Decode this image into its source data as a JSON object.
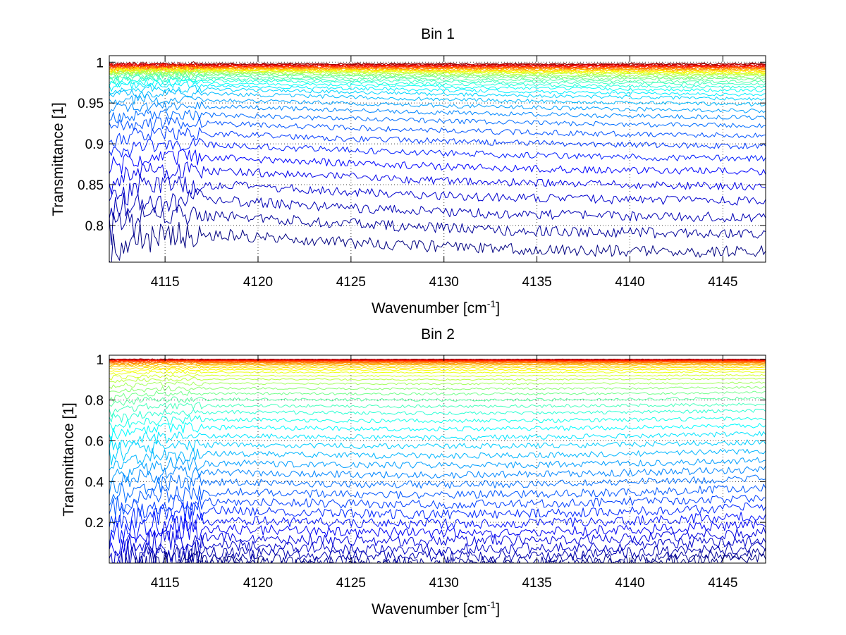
{
  "chart_data": [
    {
      "type": "line",
      "id": "bin1",
      "title": "Bin 1",
      "xlabel": "Wavenumber [cm",
      "xlabel_sup": "-1",
      "xlabel_end": "]",
      "ylabel": "Transmittance [1]",
      "xlim": [
        4112,
        4147.3
      ],
      "ylim": [
        0.755,
        1.008
      ],
      "xticks": [
        4115,
        4120,
        4125,
        4130,
        4135,
        4140,
        4145
      ],
      "xtick_labels": [
        "4115",
        "4120",
        "4125",
        "4130",
        "4135",
        "4140",
        "4145"
      ],
      "yticks": [
        0.8,
        0.85,
        0.9,
        0.95,
        1.0
      ],
      "ytick_labels": [
        "0.8",
        "0.85",
        "0.9",
        "0.95",
        "1"
      ],
      "grid": true,
      "colormap": "jet",
      "series_count": 40,
      "series_baseline_level": [
        0.998,
        0.9975,
        0.997,
        0.9965,
        0.996,
        0.9955,
        0.995,
        0.9945,
        0.994,
        0.9935,
        0.993,
        0.9925,
        0.992,
        0.9915,
        0.991,
        0.9905,
        0.99,
        0.989,
        0.988,
        0.987,
        0.986,
        0.984,
        0.982,
        0.98,
        0.977,
        0.974,
        0.97,
        0.965,
        0.958,
        0.95,
        0.94,
        0.93,
        0.918,
        0.905,
        0.89,
        0.875,
        0.858,
        0.84,
        0.822,
        0.8
      ],
      "series_end_level": [
        0.998,
        0.9975,
        0.997,
        0.996,
        0.9955,
        0.995,
        0.9945,
        0.994,
        0.993,
        0.9925,
        0.992,
        0.991,
        0.99,
        0.989,
        0.988,
        0.987,
        0.986,
        0.985,
        0.983,
        0.981,
        0.979,
        0.976,
        0.973,
        0.969,
        0.965,
        0.96,
        0.955,
        0.948,
        0.94,
        0.932,
        0.922,
        0.91,
        0.897,
        0.882,
        0.866,
        0.848,
        0.83,
        0.81,
        0.79,
        0.768
      ]
    },
    {
      "type": "line",
      "id": "bin2",
      "title": "Bin 2",
      "xlabel": "Wavenumber [cm",
      "xlabel_sup": "-1",
      "xlabel_end": "]",
      "ylabel": "Transmittance [1]",
      "xlim": [
        4112,
        4147.3
      ],
      "ylim": [
        0.0,
        1.02
      ],
      "xticks": [
        4115,
        4120,
        4125,
        4130,
        4135,
        4140,
        4145
      ],
      "xtick_labels": [
        "4115",
        "4120",
        "4125",
        "4130",
        "4135",
        "4140",
        "4145"
      ],
      "yticks": [
        0.2,
        0.4,
        0.6,
        0.8,
        1.0
      ],
      "ytick_labels": [
        "0.2",
        "0.4",
        "0.6",
        "0.8",
        "1"
      ],
      "grid": true,
      "colormap": "jet",
      "series_count": 44,
      "series_baseline_level": [
        1.0,
        0.999,
        0.998,
        0.997,
        0.996,
        0.995,
        0.994,
        0.993,
        0.991,
        0.989,
        0.986,
        0.983,
        0.979,
        0.974,
        0.968,
        0.96,
        0.95,
        0.938,
        0.922,
        0.905,
        0.885,
        0.862,
        0.838,
        0.81,
        0.78,
        0.748,
        0.712,
        0.675,
        0.635,
        0.594,
        0.55,
        0.505,
        0.46,
        0.415,
        0.368,
        0.322,
        0.276,
        0.232,
        0.19,
        0.15,
        0.112,
        0.078,
        0.05,
        0.03
      ],
      "series_end_level": [
        1.0,
        0.999,
        0.998,
        0.997,
        0.996,
        0.995,
        0.994,
        0.993,
        0.991,
        0.989,
        0.986,
        0.983,
        0.979,
        0.974,
        0.968,
        0.96,
        0.95,
        0.938,
        0.922,
        0.905,
        0.885,
        0.862,
        0.838,
        0.81,
        0.78,
        0.748,
        0.712,
        0.675,
        0.635,
        0.594,
        0.55,
        0.505,
        0.46,
        0.415,
        0.368,
        0.322,
        0.276,
        0.232,
        0.19,
        0.15,
        0.112,
        0.078,
        0.05,
        0.03
      ]
    }
  ]
}
